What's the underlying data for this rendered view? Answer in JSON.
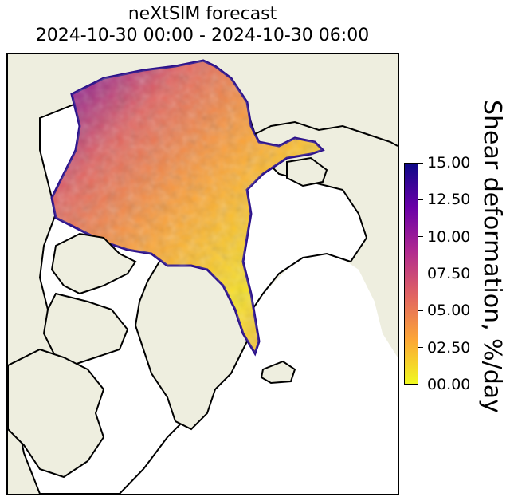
{
  "title": {
    "line1": "neXtSIM forecast",
    "line2": "2024-10-30 00:00 - 2024-10-30 06:00"
  },
  "map": {
    "land_color": "#eeeedf",
    "ocean_color": "#ffffff",
    "coastline_color": "#000000",
    "colormap": "plasma_r",
    "variable": "Shear deformation"
  },
  "colorbar": {
    "label": "Shear deformation, %/day",
    "min": 0,
    "max": 15,
    "ticks": [
      "00.00",
      "02.50",
      "05.00",
      "07.50",
      "10.00",
      "12.50",
      "15.00"
    ],
    "colors": [
      "#f0f921",
      "#fca636",
      "#e16462",
      "#b12a90",
      "#6a00a8",
      "#0d0887"
    ]
  }
}
